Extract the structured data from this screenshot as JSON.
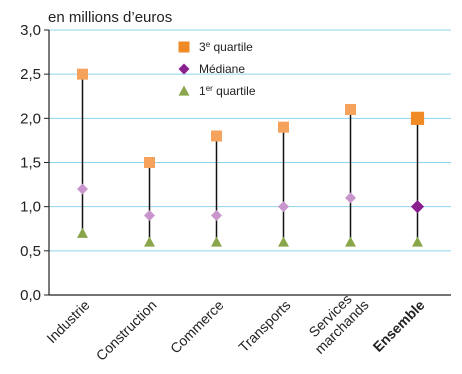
{
  "chart_data": {
    "type": "scatter",
    "ylabel": "en millions d’euros",
    "ylim": [
      0,
      3
    ],
    "y_ticks": [
      "0,0",
      "0,5",
      "1,0",
      "1,5",
      "2,0",
      "2,5",
      "3,0"
    ],
    "y_tick_values": [
      0,
      0.5,
      1,
      1.5,
      2,
      2.5,
      3
    ],
    "grid": true,
    "legend_position": "top-center",
    "categories": [
      {
        "label": "Industrie",
        "label_line2": "",
        "bold": false
      },
      {
        "label": "Construction",
        "label_line2": "",
        "bold": false
      },
      {
        "label": "Commerce",
        "label_line2": "",
        "bold": false
      },
      {
        "label": "Transports",
        "label_line2": "",
        "bold": false
      },
      {
        "label": "Services",
        "label_line2": "marchands",
        "bold": false
      },
      {
        "label": "Ensemble",
        "label_line2": "",
        "bold": true
      }
    ],
    "series": [
      {
        "key": "q3",
        "name": "3e quartile",
        "name_base": "3",
        "name_sup": "e",
        "name_rest": " quartile",
        "marker": "square",
        "color": "#f5a25d",
        "highlight_color": "#f08a24",
        "values": [
          2.5,
          1.5,
          1.8,
          1.9,
          2.1,
          2.0
        ]
      },
      {
        "key": "median",
        "name": "Médiane",
        "name_base": "Médiane",
        "name_sup": "",
        "name_rest": "",
        "marker": "diamond",
        "color": "#c896cc",
        "highlight_color": "#8a1f8e",
        "values": [
          1.2,
          0.9,
          0.9,
          1.0,
          1.1,
          1.0
        ]
      },
      {
        "key": "q1",
        "name": "1er quartile",
        "name_base": "1",
        "name_sup": "er",
        "name_rest": " quartile",
        "marker": "triangle",
        "color": "#8aa64a",
        "highlight_color": "#8aa64a",
        "values": [
          0.7,
          0.6,
          0.6,
          0.6,
          0.6,
          0.6
        ]
      }
    ]
  }
}
